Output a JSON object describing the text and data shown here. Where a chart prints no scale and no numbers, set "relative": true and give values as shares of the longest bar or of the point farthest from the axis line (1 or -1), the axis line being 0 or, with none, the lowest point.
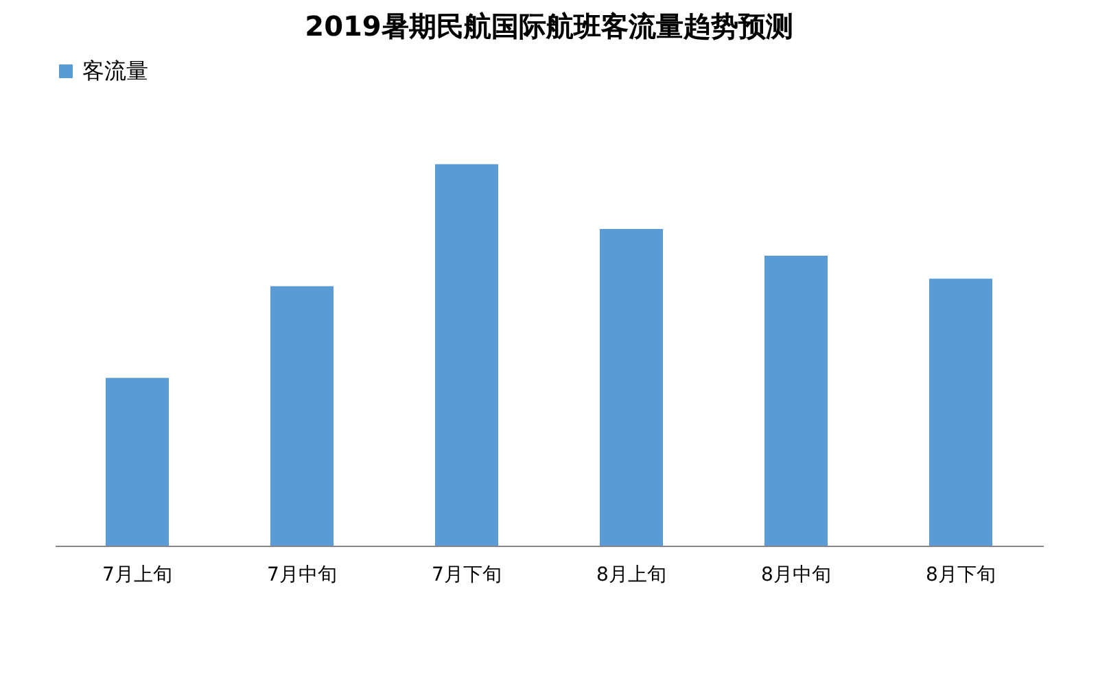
{
  "chart_data": {
    "type": "bar",
    "title": "2019暑期民航国际航班客流量趋势预测",
    "categories": [
      "7月上旬",
      "7月中旬",
      "7月下旬",
      "8月上旬",
      "8月中旬",
      "8月下旬"
    ],
    "series": [
      {
        "name": "客流量",
        "color": "#5b9bd5",
        "values": [
          0.44,
          0.68,
          1,
          0.83,
          0.76,
          0.7
        ]
      }
    ],
    "relative": true,
    "legend": "top",
    "grid": false
  }
}
